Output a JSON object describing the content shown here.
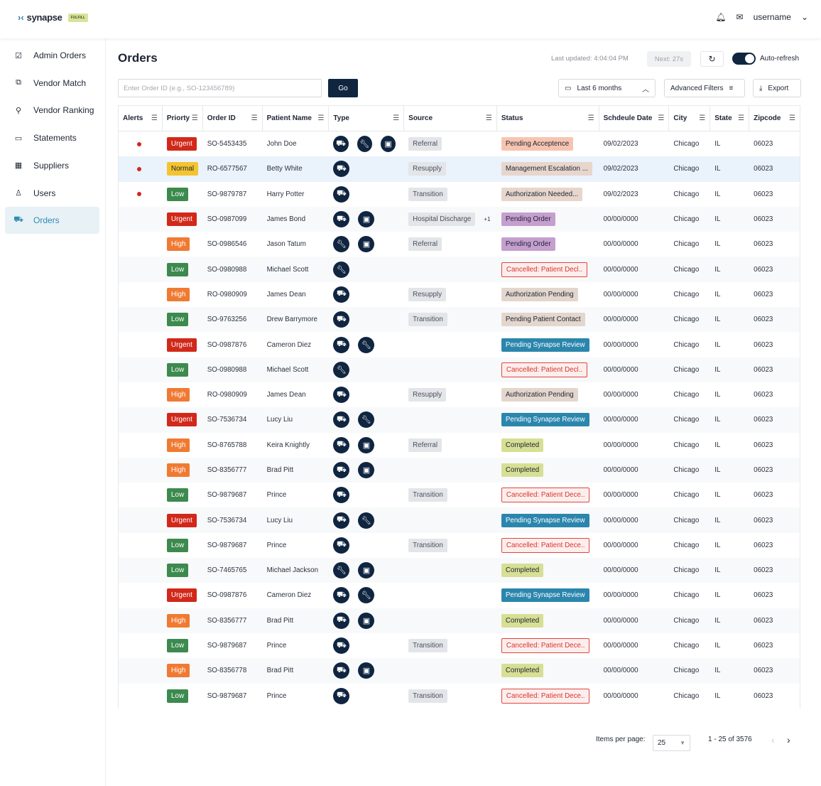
{
  "brand": {
    "name": "synapse",
    "badge": "FULFILL"
  },
  "header": {
    "username": "username"
  },
  "sidebar": {
    "items": [
      {
        "label": "Admin Orders",
        "icon": "clipboard-check-icon",
        "glyph": "☑"
      },
      {
        "label": "Vendor Match",
        "icon": "vendor-match-icon",
        "glyph": "⧉"
      },
      {
        "label": "Vendor Ranking",
        "icon": "hierarchy-icon",
        "glyph": "⚲"
      },
      {
        "label": "Statements",
        "icon": "money-icon",
        "glyph": "▭"
      },
      {
        "label": "Suppliers",
        "icon": "building-icon",
        "glyph": "▦"
      },
      {
        "label": "Users",
        "icon": "user-icon",
        "glyph": "♙"
      },
      {
        "label": "Orders",
        "icon": "truck-icon",
        "glyph": "⛟",
        "active": true
      }
    ]
  },
  "page": {
    "title": "Orders",
    "last_updated": "Last updated: 4:04:04 PM",
    "next": "Next: 27s",
    "auto_refresh": "Auto-refresh",
    "auto_refresh_on": true
  },
  "toolbar": {
    "search_placeholder": "Enter Order ID (e.g., SO-123456789)",
    "go": "Go",
    "date_range": "Last 6 months",
    "advanced_filters": "Advanced Filters",
    "export": "Export"
  },
  "colors": {
    "Urgent": "#d2281a",
    "Normal": "#f4c430",
    "High": "#f07a32",
    "Low": "#3c8a4e",
    "accent": "#0f2540"
  },
  "status_styles": {
    "Pending Acceptence": {
      "bg": "#f6c4b0"
    },
    "Management Escalation ...": {
      "bg": "#e7d6cc"
    },
    "Authorization Needed...": {
      "bg": "#e7d6cc"
    },
    "Pending Order": {
      "bg": "#c59fcf"
    },
    "Cancelled: Patient Decl..": {
      "bg": "#fdeeee",
      "border": "#e0463c",
      "color": "#d8352a"
    },
    "Cancelled: Patient Dece..": {
      "bg": "#fdeeee",
      "border": "#e0463c",
      "color": "#d8352a"
    },
    "Authorization Pending": {
      "bg": "#e3d6cd"
    },
    "Pending Patient Contact": {
      "bg": "#e3d6cd"
    },
    "Pending Synapse Review": {
      "bg": "#2b86ad",
      "color": "#ffffff"
    },
    "Completed": {
      "bg": "#d7df94"
    }
  },
  "table": {
    "columns": [
      "Alerts",
      "Priorty",
      "Order ID",
      "Patient Name",
      "Type",
      "Source",
      "Status",
      "Schdeule Date",
      "City",
      "State",
      "Zipcode"
    ],
    "rows": [
      {
        "alert": true,
        "priority": "Urgent",
        "id": "SO-5453435",
        "name": "John Doe",
        "types": [
          "truck",
          "wrench",
          "box"
        ],
        "source": "Referral",
        "status": "Pending Acceptence",
        "date": "09/02/2023",
        "city": "Chicago",
        "state": "IL",
        "zip": "06023"
      },
      {
        "alert": true,
        "priority": "Normal",
        "id": "RO-6577567",
        "name": "Betty White",
        "types": [
          "truck"
        ],
        "source": "Resupply",
        "status": "Management Escalation ...",
        "date": "09/02/2023",
        "city": "Chicago",
        "state": "IL",
        "zip": "06023",
        "selected": true
      },
      {
        "alert": true,
        "priority": "Low",
        "id": "SO-9879787",
        "name": "Harry Potter",
        "types": [
          "truck"
        ],
        "source": "Transition",
        "status": "Authorization Needed...",
        "date": "09/02/2023",
        "city": "Chicago",
        "state": "IL",
        "zip": "06023"
      },
      {
        "alert": false,
        "priority": "Urgent",
        "id": "SO-0987099",
        "name": "James Bond",
        "types": [
          "truck",
          "box"
        ],
        "source": "Hospital Discharge",
        "source_more": "+1",
        "status": "Pending Order",
        "date": "00/00/0000",
        "city": "Chicago",
        "state": "IL",
        "zip": "06023"
      },
      {
        "alert": false,
        "priority": "High",
        "id": "SO-0986546",
        "name": "Jason Tatum",
        "types": [
          "wrench",
          "box"
        ],
        "source": "Referral",
        "status": "Pending Order",
        "date": "00/00/0000",
        "city": "Chicago",
        "state": "IL",
        "zip": "06023"
      },
      {
        "alert": false,
        "priority": "Low",
        "id": "SO-0980988",
        "name": "Michael Scott",
        "types": [
          "wrench"
        ],
        "source": "",
        "status": "Cancelled: Patient Decl..",
        "date": "00/00/0000",
        "city": "Chicago",
        "state": "IL",
        "zip": "06023"
      },
      {
        "alert": false,
        "priority": "High",
        "id": "RO-0980909",
        "name": "James Dean",
        "types": [
          "truck"
        ],
        "source": "Resupply",
        "status": "Authorization Pending",
        "date": "00/00/0000",
        "city": "Chicago",
        "state": "IL",
        "zip": "06023"
      },
      {
        "alert": false,
        "priority": "Low",
        "id": "SO-9763256",
        "name": "Drew Barrymore",
        "types": [
          "truck"
        ],
        "source": "Transition",
        "status": "Pending Patient Contact",
        "date": "00/00/0000",
        "city": "Chicago",
        "state": "IL",
        "zip": "06023"
      },
      {
        "alert": false,
        "priority": "Urgent",
        "id": "SO-0987876",
        "name": "Cameron Diez",
        "types": [
          "truck",
          "wrench"
        ],
        "source": "",
        "status": "Pending Synapse Review",
        "date": "00/00/0000",
        "city": "Chicago",
        "state": "IL",
        "zip": "06023"
      },
      {
        "alert": false,
        "priority": "Low",
        "id": "SO-0980988",
        "name": "Michael Scott",
        "types": [
          "wrench"
        ],
        "source": "",
        "status": "Cancelled: Patient Decl..",
        "date": "00/00/0000",
        "city": "Chicago",
        "state": "IL",
        "zip": "06023"
      },
      {
        "alert": false,
        "priority": "High",
        "id": "RO-0980909",
        "name": "James Dean",
        "types": [
          "truck"
        ],
        "source": "Resupply",
        "status": "Authorization Pending",
        "date": "00/00/0000",
        "city": "Chicago",
        "state": "IL",
        "zip": "06023"
      },
      {
        "alert": false,
        "priority": "Urgent",
        "id": "SO-7536734",
        "name": "Lucy Liu",
        "types": [
          "truck",
          "wrench"
        ],
        "source": "",
        "status": "Pending Synapse Review",
        "date": "00/00/0000",
        "city": "Chicago",
        "state": "IL",
        "zip": "06023"
      },
      {
        "alert": false,
        "priority": "High",
        "id": "SO-8765788",
        "name": "Keira Knightly",
        "types": [
          "truck",
          "box"
        ],
        "source": "Referral",
        "status": "Completed",
        "date": "00/00/0000",
        "city": "Chicago",
        "state": "IL",
        "zip": "06023"
      },
      {
        "alert": false,
        "priority": "High",
        "id": "SO-8356777",
        "name": "Brad Pitt",
        "types": [
          "truck",
          "box"
        ],
        "source": "",
        "status": "Completed",
        "date": "00/00/0000",
        "city": "Chicago",
        "state": "IL",
        "zip": "06023"
      },
      {
        "alert": false,
        "priority": "Low",
        "id": "SO-9879687",
        "name": "Prince",
        "types": [
          "truck"
        ],
        "source": "Transition",
        "status": "Cancelled: Patient Dece..",
        "date": "00/00/0000",
        "city": "Chicago",
        "state": "IL",
        "zip": "06023"
      },
      {
        "alert": false,
        "priority": "Urgent",
        "id": "SO-7536734",
        "name": "Lucy Liu",
        "types": [
          "truck",
          "wrench"
        ],
        "source": "",
        "status": "Pending Synapse Review",
        "date": "00/00/0000",
        "city": "Chicago",
        "state": "IL",
        "zip": "06023"
      },
      {
        "alert": false,
        "priority": "Low",
        "id": "SO-9879687",
        "name": "Prince",
        "types": [
          "truck"
        ],
        "source": "Transition",
        "status": "Cancelled: Patient Dece..",
        "date": "00/00/0000",
        "city": "Chicago",
        "state": "IL",
        "zip": "06023"
      },
      {
        "alert": false,
        "priority": "Low",
        "id": "SO-7465765",
        "name": "Michael Jackson",
        "types": [
          "wrench",
          "box"
        ],
        "source": "",
        "status": "Completed",
        "date": "00/00/0000",
        "city": "Chicago",
        "state": "IL",
        "zip": "06023"
      },
      {
        "alert": false,
        "priority": "Urgent",
        "id": "SO-0987876",
        "name": "Cameron Diez",
        "types": [
          "truck",
          "wrench"
        ],
        "source": "",
        "status": "Pending Synapse Review",
        "date": "00/00/0000",
        "city": "Chicago",
        "state": "IL",
        "zip": "06023"
      },
      {
        "alert": false,
        "priority": "High",
        "id": "SO-8356777",
        "name": "Brad Pitt",
        "types": [
          "truck",
          "box"
        ],
        "source": "",
        "status": "Completed",
        "date": "00/00/0000",
        "city": "Chicago",
        "state": "IL",
        "zip": "06023"
      },
      {
        "alert": false,
        "priority": "Low",
        "id": "SO-9879687",
        "name": "Prince",
        "types": [
          "truck"
        ],
        "source": "Transition",
        "status": "Cancelled: Patient Dece..",
        "date": "00/00/0000",
        "city": "Chicago",
        "state": "IL",
        "zip": "06023"
      },
      {
        "alert": false,
        "priority": "High",
        "id": "SO-8356778",
        "name": "Brad Pitt",
        "types": [
          "truck",
          "box"
        ],
        "source": "",
        "status": "Completed",
        "date": "00/00/0000",
        "city": "Chicago",
        "state": "IL",
        "zip": "06023"
      },
      {
        "alert": false,
        "priority": "Low",
        "id": "SO-9879687",
        "name": "Prince",
        "types": [
          "truck"
        ],
        "source": "Transition",
        "status": "Cancelled: Patient Dece..",
        "date": "00/00/0000",
        "city": "Chicago",
        "state": "IL",
        "zip": "06023"
      }
    ]
  },
  "pagination": {
    "items_per_page_label": "Items per page:",
    "items_per_page": "25",
    "range": "1 - 25 of 3576"
  }
}
